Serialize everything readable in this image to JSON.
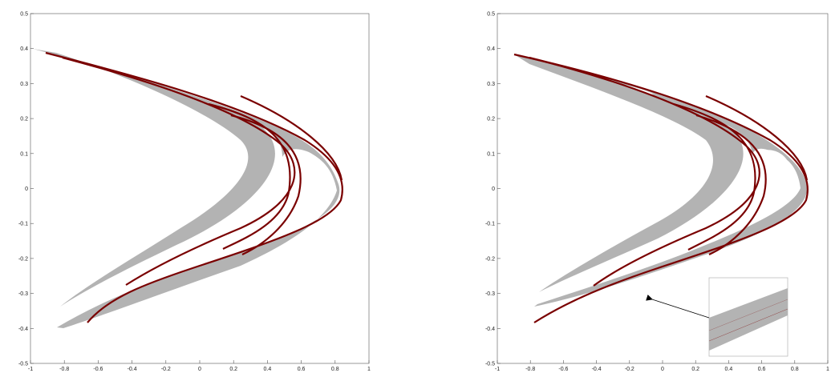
{
  "colors": {
    "band": "#b3b3b3",
    "curve": "#7a0000",
    "axis": "#666666",
    "arrow": "#000000",
    "inset_border": "#bdbdbd"
  },
  "chart_data": [
    {
      "type": "scatter",
      "title": "",
      "xlabel": "",
      "ylabel": "",
      "xlim": [
        -1,
        1
      ],
      "ylim": [
        -0.5,
        0.5
      ],
      "x_ticks": [
        "-1",
        "-0.8",
        "-0.6",
        "-0.4",
        "-0.2",
        "0",
        "0.2",
        "0.4",
        "0.6",
        "0.8",
        "1"
      ],
      "y_ticks": [
        "0.5",
        "0.4",
        "0.3",
        "0.2",
        "0.1",
        "0",
        "-0.1",
        "-0.2",
        "-0.3",
        "-0.4",
        "-0.5"
      ],
      "grid": false,
      "series": [
        {
          "kind": "gray-region",
          "points": [
            [
              -0.91,
              0.39
            ],
            [
              -0.6,
              0.35
            ],
            [
              -0.2,
              0.29
            ],
            [
              0.2,
              0.22
            ],
            [
              0.5,
              0.15
            ],
            [
              0.7,
              0.07
            ],
            [
              0.82,
              0.0
            ],
            [
              0.8,
              -0.05
            ],
            [
              0.6,
              -0.12
            ],
            [
              0.2,
              -0.22
            ],
            [
              -0.2,
              -0.29
            ],
            [
              -0.5,
              -0.32
            ],
            [
              -0.75,
              -0.34
            ],
            [
              -0.55,
              -0.32
            ],
            [
              -0.1,
              -0.25
            ],
            [
              0.25,
              -0.15
            ],
            [
              0.32,
              0.0
            ],
            [
              0.25,
              0.1
            ],
            [
              0.0,
              0.2
            ],
            [
              -0.4,
              0.3
            ]
          ]
        },
        {
          "kind": "dark-red-curve",
          "points": [
            [
              -0.84,
              0.38
            ],
            [
              -0.5,
              0.34
            ],
            [
              -0.1,
              0.28
            ],
            [
              0.3,
              0.2
            ],
            [
              0.6,
              0.12
            ],
            [
              0.76,
              0.06
            ],
            [
              0.84,
              0.0
            ],
            [
              0.8,
              -0.07
            ],
            [
              0.6,
              -0.16
            ],
            [
              0.3,
              -0.25
            ],
            [
              0.0,
              -0.31
            ],
            [
              -0.3,
              -0.35
            ],
            [
              -0.61,
              -0.38
            ]
          ]
        }
      ]
    },
    {
      "type": "scatter",
      "title": "",
      "xlabel": "",
      "ylabel": "",
      "xlim": [
        -1,
        1
      ],
      "ylim": [
        -0.5,
        0.5
      ],
      "x_ticks": [
        "-1",
        "-0.8",
        "-0.6",
        "-0.4",
        "-0.2",
        "0",
        "0.2",
        "0.4",
        "0.6",
        "0.8",
        "1"
      ],
      "y_ticks": [
        "0.5",
        "0.4",
        "0.3",
        "0.2",
        "0.1",
        "0",
        "-0.1",
        "-0.2",
        "-0.3",
        "-0.4",
        "-0.5"
      ],
      "grid": false,
      "inset": {
        "xlim": [
          -0.2,
          0.1
        ],
        "ylim": [
          -0.34,
          -0.28
        ],
        "arrow_target": [
          -0.16,
          -0.32
        ]
      }
    }
  ]
}
